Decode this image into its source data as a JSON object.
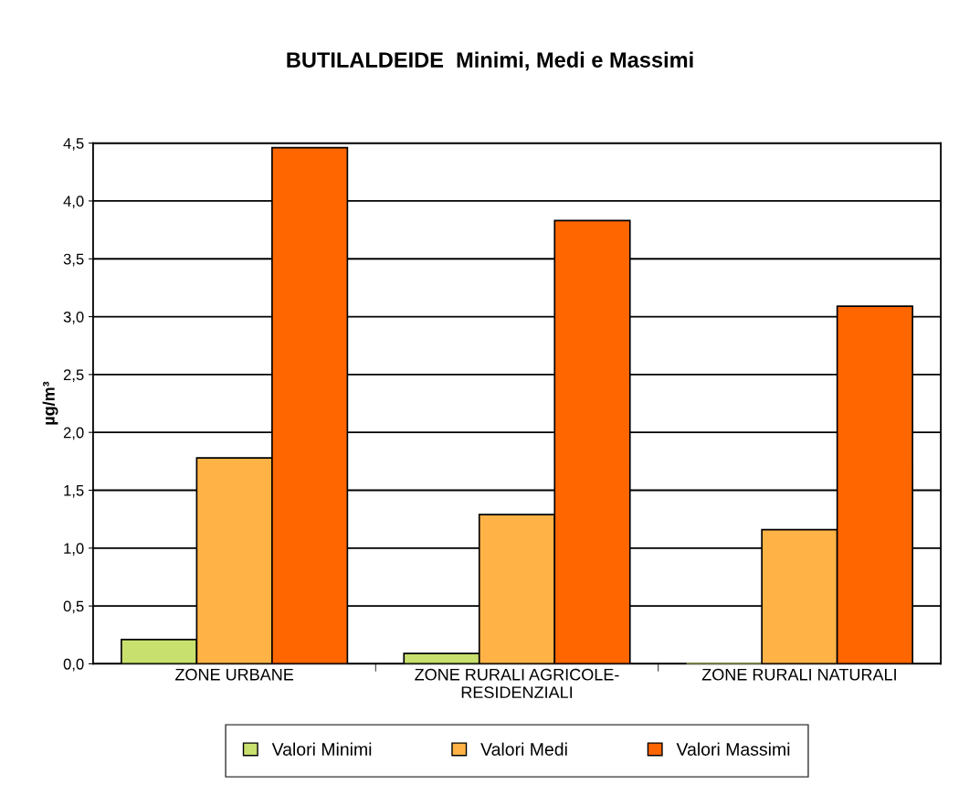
{
  "chart_data": {
    "type": "bar",
    "title": "BUTILALDEIDE  Minimi, Medi e Massimi",
    "ylabel": "µg/m³",
    "categories": [
      "ZONE URBANE",
      "ZONE RURALI AGRICOLE-\nRESIDENZIALI",
      "ZONE RURALI NATURALI"
    ],
    "series": [
      {
        "name": "Valori Minimi",
        "color": "#c8e06e",
        "values": [
          0.21,
          0.09,
          0.0
        ]
      },
      {
        "name": "Valori Medi",
        "color": "#ffb347",
        "values": [
          1.78,
          1.29,
          1.16
        ]
      },
      {
        "name": "Valori Massimi",
        "color": "#ff6600",
        "values": [
          4.46,
          3.83,
          3.09
        ]
      }
    ],
    "ylim": [
      0,
      4.5
    ],
    "yticks": [
      {
        "value": 0,
        "label": "0,0"
      },
      {
        "value": 0.5,
        "label": "0,5"
      },
      {
        "value": 1,
        "label": "1,0"
      },
      {
        "value": 1.5,
        "label": "1,5"
      },
      {
        "value": 2,
        "label": "2,0"
      },
      {
        "value": 2.5,
        "label": "2,5"
      },
      {
        "value": 3,
        "label": "3,0"
      },
      {
        "value": 3.5,
        "label": "3,5"
      },
      {
        "value": 4,
        "label": "4,0"
      },
      {
        "value": 4.5,
        "label": "4,5"
      }
    ],
    "grid": "y",
    "legend": "bottom"
  }
}
